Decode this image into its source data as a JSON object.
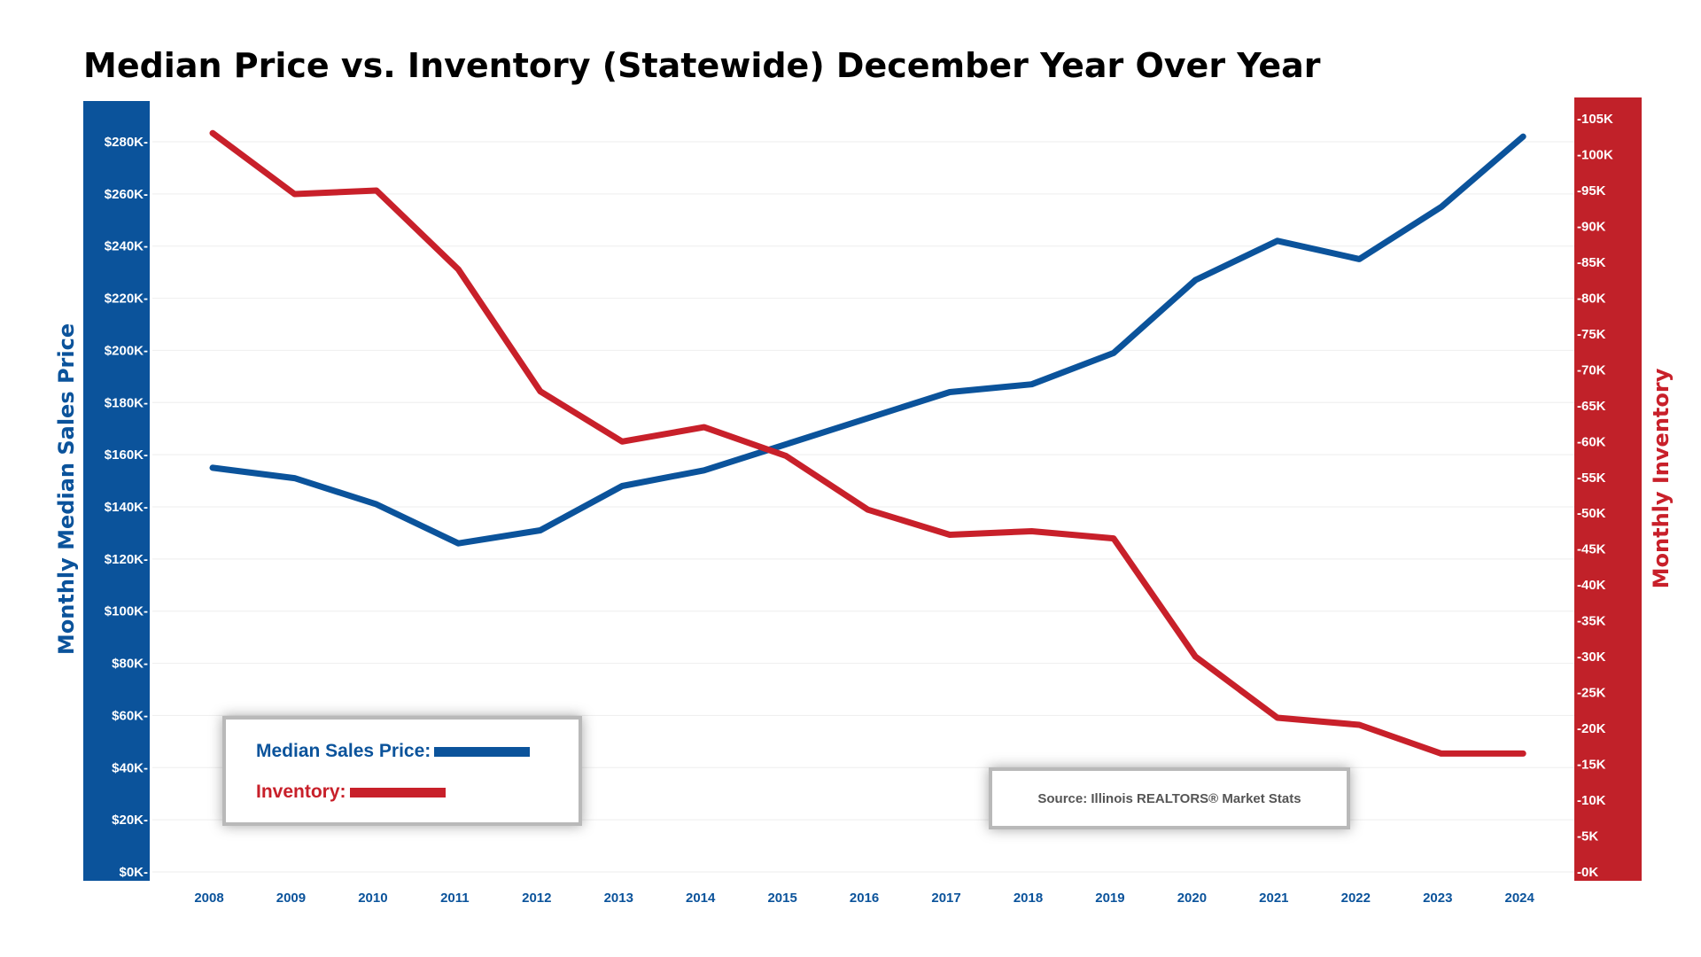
{
  "title": "Median Price vs. Inventory (Statewide) December Year Over Year",
  "source": "Source: Illinois REALTORS® Market Stats",
  "legend": {
    "price_label": "Median Sales Price:",
    "inventory_label": "Inventory:"
  },
  "colors": {
    "price": "#0b539b",
    "inventory": "#c8202a",
    "grid": "#eeeeee"
  },
  "chart_data": {
    "type": "line",
    "title": "Median Price vs. Inventory (Statewide) December Year Over Year",
    "xlabel": "",
    "ylabel": "Monthly Median Sales Price",
    "y2label": "Monthly Inventory",
    "categories": [
      "2008",
      "2009",
      "2010",
      "2011",
      "2012",
      "2013",
      "2014",
      "2015",
      "2016",
      "2017",
      "2018",
      "2019",
      "2020",
      "2021",
      "2022",
      "2023",
      "2024"
    ],
    "ylim": [
      0,
      290000
    ],
    "y2lim": [
      0,
      105000
    ],
    "y_ticks": [
      {
        "value": 0,
        "label": "$0K-"
      },
      {
        "value": 20000,
        "label": "$20K-"
      },
      {
        "value": 40000,
        "label": "$40K-"
      },
      {
        "value": 60000,
        "label": "$60K-"
      },
      {
        "value": 80000,
        "label": "$80K-"
      },
      {
        "value": 100000,
        "label": "$100K-"
      },
      {
        "value": 120000,
        "label": "$120K-"
      },
      {
        "value": 140000,
        "label": "$140K-"
      },
      {
        "value": 160000,
        "label": "$160K-"
      },
      {
        "value": 180000,
        "label": "$180K-"
      },
      {
        "value": 200000,
        "label": "$200K-"
      },
      {
        "value": 220000,
        "label": "$220K-"
      },
      {
        "value": 240000,
        "label": "$240K-"
      },
      {
        "value": 260000,
        "label": "$260K-"
      },
      {
        "value": 280000,
        "label": "$280K-"
      }
    ],
    "y2_ticks": [
      {
        "value": 0,
        "label": "-0K"
      },
      {
        "value": 5000,
        "label": "-5K"
      },
      {
        "value": 10000,
        "label": "-10K"
      },
      {
        "value": 15000,
        "label": "-15K"
      },
      {
        "value": 20000,
        "label": "-20K"
      },
      {
        "value": 25000,
        "label": "-25K"
      },
      {
        "value": 30000,
        "label": "-30K"
      },
      {
        "value": 35000,
        "label": "-35K"
      },
      {
        "value": 40000,
        "label": "-40K"
      },
      {
        "value": 45000,
        "label": "-45K"
      },
      {
        "value": 50000,
        "label": "-50K"
      },
      {
        "value": 55000,
        "label": "-55K"
      },
      {
        "value": 60000,
        "label": "-60K"
      },
      {
        "value": 65000,
        "label": "-65K"
      },
      {
        "value": 70000,
        "label": "-70K"
      },
      {
        "value": 75000,
        "label": "-75K"
      },
      {
        "value": 80000,
        "label": "-80K"
      },
      {
        "value": 85000,
        "label": "-85K"
      },
      {
        "value": 90000,
        "label": "-90K"
      },
      {
        "value": 95000,
        "label": "-95K"
      },
      {
        "value": 100000,
        "label": "-100K"
      },
      {
        "value": 105000,
        "label": "-105K"
      }
    ],
    "series": [
      {
        "name": "Median Sales Price",
        "axis": "left",
        "values": [
          155000,
          151000,
          141000,
          126000,
          131000,
          148000,
          154000,
          164000,
          174000,
          184000,
          187000,
          199000,
          227000,
          242000,
          235000,
          255000,
          282000
        ]
      },
      {
        "name": "Inventory",
        "axis": "right",
        "values": [
          103000,
          94500,
          95000,
          84000,
          67000,
          60000,
          62000,
          58000,
          50500,
          47000,
          47500,
          46500,
          30000,
          21500,
          20500,
          16500,
          16500
        ]
      }
    ]
  }
}
